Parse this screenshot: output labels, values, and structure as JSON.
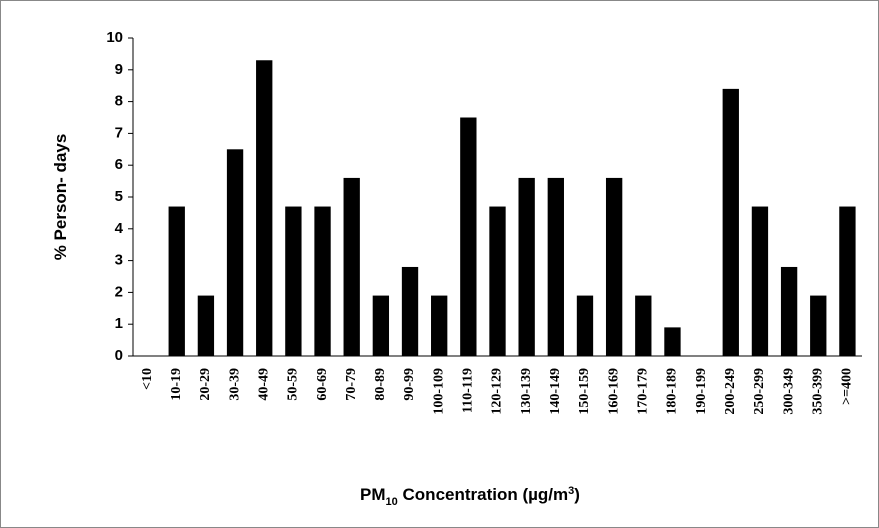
{
  "chart_data": {
    "type": "bar",
    "y_label": "% Person- days",
    "x_label": [
      "PM",
      "10",
      " Concentration (µg/m",
      "3",
      ")"
    ],
    "categories": [
      "<10",
      "10-19",
      "20-29",
      "30-39",
      "40-49",
      "50-59",
      "60-69",
      "70-79",
      "80-89",
      "90-99",
      "100-109",
      "110-119",
      "120-129",
      "130-139",
      "140-149",
      "150-159",
      "160-169",
      "170-179",
      "180-189",
      "190-199",
      "200-249",
      "250-299",
      "300-349",
      "350-399",
      ">=400"
    ],
    "values": [
      0,
      4.7,
      1.9,
      6.5,
      9.3,
      4.7,
      4.7,
      5.6,
      1.9,
      2.8,
      1.9,
      7.5,
      4.7,
      5.6,
      5.6,
      1.9,
      5.6,
      1.9,
      0.9,
      0,
      8.4,
      4.7,
      2.8,
      1.9,
      4.7
    ],
    "color": "#000000",
    "ylim": [
      0,
      10
    ],
    "yticks": [
      0,
      1,
      2,
      3,
      4,
      5,
      6,
      7,
      8,
      9,
      10
    ],
    "grid": false
  }
}
